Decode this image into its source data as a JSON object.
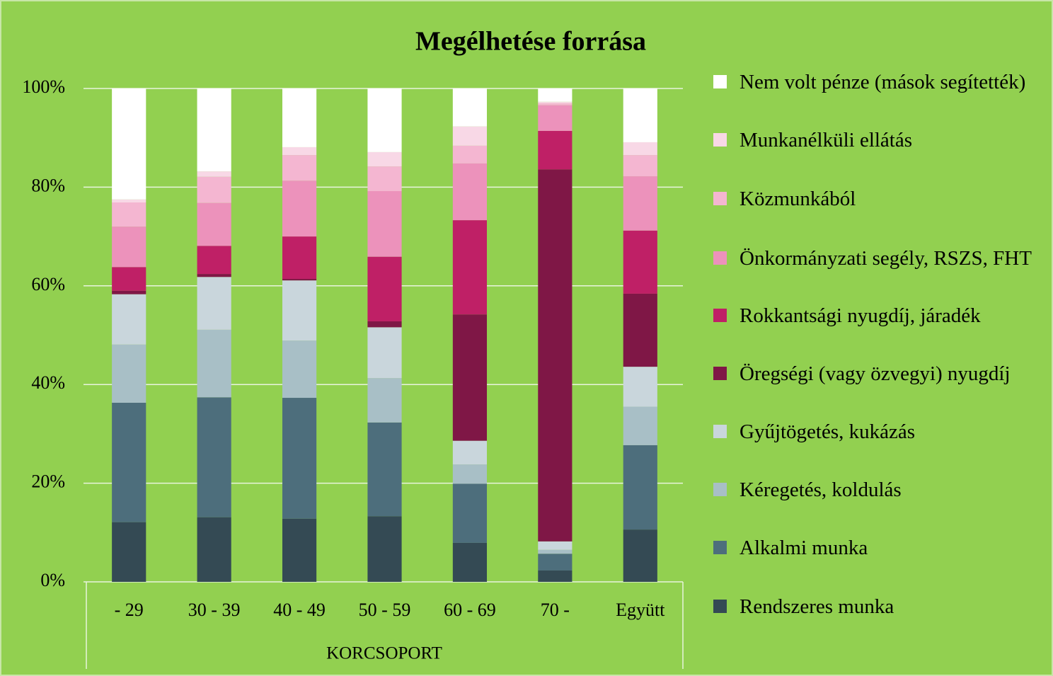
{
  "chart_data": {
    "type": "stacked_bar",
    "title": "Megélhetése forrása",
    "x_label": "KORCSOPORT",
    "categories": [
      "- 29",
      "30 - 39",
      "40 - 49",
      "50 - 59",
      "60 - 69",
      "70 -",
      "Együtt"
    ],
    "series": [
      {
        "name": "Rendszeres munka",
        "color": "#344a54",
        "values": [
          12.1,
          13.1,
          12.8,
          13.3,
          7.9,
          2.3,
          10.6
        ]
      },
      {
        "name": "Alkalmi munka",
        "color": "#4d6e7c",
        "values": [
          24.2,
          24.3,
          24.5,
          19.0,
          12.0,
          3.4,
          17.1
        ]
      },
      {
        "name": "Kéregetés, koldulás",
        "color": "#a8bfc6",
        "values": [
          11.8,
          13.7,
          11.6,
          9.0,
          3.9,
          0.8,
          7.8
        ]
      },
      {
        "name": "Gyűjtögetés, kukázás",
        "color": "#c9d6dc",
        "values": [
          10.2,
          10.7,
          12.2,
          10.3,
          4.8,
          1.7,
          8.1
        ]
      },
      {
        "name": "Öregségi (vagy özvegyi) nyugdíj",
        "color": "#7f1746",
        "values": [
          0.7,
          0.6,
          0.3,
          1.2,
          25.6,
          75.4,
          14.8
        ]
      },
      {
        "name": "Rokkantsági nyugdíj, járadék",
        "color": "#bf2066",
        "values": [
          4.8,
          5.7,
          8.6,
          13.1,
          19.1,
          7.8,
          12.8
        ]
      },
      {
        "name": "Önkormányzati segély, RSZS, FHT",
        "color": "#ec92bb",
        "values": [
          8.2,
          8.7,
          11.3,
          13.3,
          11.5,
          5.2,
          11.0
        ]
      },
      {
        "name": "Közmunkából",
        "color": "#f4b6d1",
        "values": [
          4.9,
          5.3,
          5.2,
          5.0,
          3.6,
          0.4,
          4.3
        ]
      },
      {
        "name": "Munkanélküli ellátás",
        "color": "#f8d8e6",
        "values": [
          0.6,
          1.1,
          1.6,
          2.9,
          3.9,
          0.3,
          2.6
        ]
      },
      {
        "name": "Nem volt pénze (mások segítették)",
        "color": "#ffffff",
        "values": [
          22.5,
          16.8,
          11.9,
          12.9,
          7.7,
          2.7,
          10.9
        ]
      }
    ],
    "ylim": [
      0,
      100
    ],
    "yticks": [
      {
        "value": 0,
        "label": "0%"
      },
      {
        "value": 20,
        "label": "20%"
      },
      {
        "value": 40,
        "label": "40%"
      },
      {
        "value": 60,
        "label": "60%"
      },
      {
        "value": 80,
        "label": "80%"
      },
      {
        "value": 100,
        "label": "100%"
      }
    ],
    "grid": true,
    "legend": "right",
    "background": "#92d050"
  }
}
